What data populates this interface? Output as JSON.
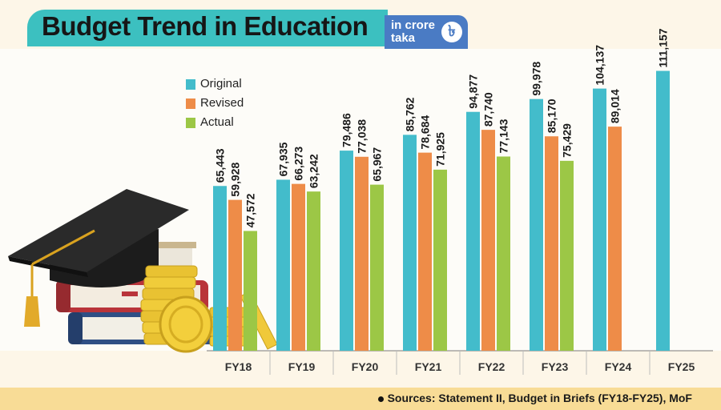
{
  "header": {
    "title": "Budget Trend in Education",
    "unit_line1": "in crore",
    "unit_line2": "taka",
    "unit_icon": "৳"
  },
  "footer": {
    "source": "Sources: Statement II, Budget in Briefs (FY18-FY25), MoF"
  },
  "colors": {
    "original": "#43bccb",
    "revised": "#ee8c48",
    "actual": "#9cc746",
    "title_bar": "#3cc0c0",
    "unit_box": "#4a7bc4",
    "footer": "#f8dc96"
  },
  "decoration": {
    "icons": [
      "graduation-cap-icon",
      "books-icon",
      "gold-coins-icon"
    ]
  },
  "chart_data": {
    "type": "bar",
    "title": "Budget Trend in Education",
    "xlabel": "",
    "ylabel": "",
    "ylim": [
      0,
      125000
    ],
    "grid": false,
    "legend_position": "top-left",
    "categories": [
      "FY18",
      "FY19",
      "FY20",
      "FY21",
      "FY22",
      "FY23",
      "FY24",
      "FY25"
    ],
    "series": [
      {
        "name": "Original",
        "color": "#43bccb",
        "values": [
          65443,
          67935,
          79486,
          85762,
          94877,
          99978,
          104137,
          111157
        ],
        "labels": [
          "65,443",
          "67,935",
          "79,486",
          "85,762",
          "94,877",
          "99,978",
          "104,137",
          "111,157"
        ]
      },
      {
        "name": "Revised",
        "color": "#ee8c48",
        "values": [
          59928,
          66273,
          77038,
          78684,
          87740,
          85170,
          89014,
          null
        ],
        "labels": [
          "59,928",
          "66,273",
          "77,038",
          "78,684",
          "87,740",
          "85,170",
          "89,014",
          null
        ]
      },
      {
        "name": "Actual",
        "color": "#9cc746",
        "values": [
          47572,
          63242,
          65967,
          71925,
          77143,
          75429,
          null,
          null
        ],
        "labels": [
          "47,572",
          "63,242",
          "65,967",
          "71,925",
          "77,143",
          "75,429",
          null,
          null
        ]
      }
    ]
  }
}
